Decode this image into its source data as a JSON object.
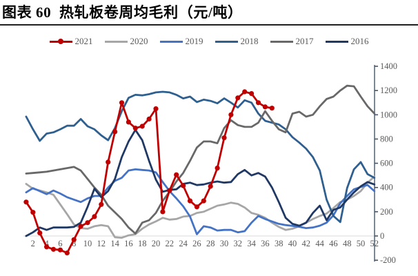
{
  "page": {
    "title": "图表 60  热轧板卷周均毛利（元/吨）",
    "title_color": "#000000",
    "rule_color": "#1f1f1f",
    "background": "#ffffff"
  },
  "legend": {
    "position": "top-center",
    "items": [
      {
        "label": "2021",
        "color": "#c00000",
        "marker": true
      },
      {
        "label": "2020",
        "color": "#a6a6a6",
        "marker": false
      },
      {
        "label": "2019",
        "color": "#4472c4",
        "marker": false
      },
      {
        "label": "2018",
        "color": "#2e5f8f",
        "marker": false
      },
      {
        "label": "2017",
        "color": "#686868",
        "marker": false
      },
      {
        "label": "2016",
        "color": "#1f3864",
        "marker": false
      }
    ]
  },
  "chart_data": {
    "type": "line",
    "title": "热轧板卷周均毛利（元/吨）",
    "x_range": [
      1,
      52
    ],
    "x_tick_labels": [
      2,
      4,
      6,
      8,
      10,
      12,
      14,
      16,
      18,
      20,
      22,
      24,
      26,
      28,
      30,
      32,
      34,
      36,
      38,
      40,
      42,
      44,
      46,
      48,
      50,
      52
    ],
    "ylim": [
      -200,
      1400
    ],
    "y_ticks": [
      -200,
      0,
      200,
      400,
      600,
      800,
      1000,
      1200,
      1400
    ],
    "grid": "zero-line-only",
    "legend_position": "top",
    "axis_side": "right",
    "axis_color": "#44546a",
    "zero_line_color": "#d9d9d9",
    "tick_label_color": "#595959",
    "series": [
      {
        "name": "2020",
        "color": "#a6a6a6",
        "marker": false,
        "start_week": 1,
        "values": [
          430,
          390,
          375,
          360,
          340,
          260,
          180,
          95,
          65,
          60,
          80,
          90,
          80,
          -10,
          -15,
          5,
          15,
          60,
          95,
          120,
          150,
          135,
          140,
          160,
          165,
          190,
          200,
          225,
          250,
          260,
          275,
          265,
          235,
          190,
          175,
          150,
          110,
          75,
          50,
          60,
          80,
          110,
          140,
          165,
          185,
          230,
          280,
          300,
          330,
          370,
          440,
          490
        ]
      },
      {
        "name": "2019",
        "color": "#4472c4",
        "marker": false,
        "start_week": 1,
        "values": [
          360,
          395,
          370,
          345,
          375,
          350,
          320,
          300,
          280,
          310,
          330,
          330,
          400,
          455,
          480,
          540,
          550,
          545,
          540,
          525,
          445,
          370,
          310,
          245,
          160,
          15,
          80,
          70,
          45,
          50,
          50,
          30,
          40,
          110,
          165,
          140,
          120,
          100,
          90,
          83,
          75,
          65,
          70,
          85,
          110,
          170,
          270,
          330,
          385,
          405,
          420,
          370
        ]
      },
      {
        "name": "2018",
        "color": "#2e5f8f",
        "marker": false,
        "start_week": 1,
        "values": [
          985,
          880,
          785,
          845,
          855,
          880,
          910,
          910,
          965,
          905,
          880,
          830,
          790,
          890,
          1030,
          1140,
          1165,
          1160,
          1170,
          1185,
          1190,
          1185,
          1165,
          1135,
          1150,
          1105,
          1125,
          1115,
          1095,
          1135,
          1100,
          1060,
          1120,
          1100,
          1010,
          950,
          935,
          920,
          880,
          815,
          770,
          720,
          650,
          540,
          300,
          165,
          115,
          395,
          550,
          610,
          510,
          480
        ]
      },
      {
        "name": "2017",
        "color": "#686868",
        "marker": false,
        "start_week": 1,
        "values": [
          515,
          520,
          525,
          530,
          540,
          550,
          560,
          570,
          540,
          470,
          400,
          340,
          250,
          195,
          140,
          70,
          20,
          110,
          130,
          190,
          290,
          365,
          450,
          520,
          620,
          730,
          780,
          780,
          765,
          890,
          955,
          915,
          900,
          900,
          935,
          1030,
          950,
          880,
          855,
          1010,
          1025,
          985,
          1000,
          1070,
          1130,
          1150,
          1200,
          1240,
          1235,
          1150,
          1070,
          1010
        ]
      },
      {
        "name": "2016",
        "color": "#1f3864",
        "marker": false,
        "start_week": 1,
        "values": [
          0,
          30,
          70,
          50,
          70,
          70,
          70,
          75,
          110,
          240,
          390,
          320,
          370,
          470,
          650,
          780,
          875,
          790,
          620,
          465,
          365,
          380,
          385,
          430,
          440,
          420,
          425,
          440,
          450,
          440,
          445,
          510,
          545,
          500,
          520,
          490,
          400,
          280,
          150,
          100,
          85,
          110,
          190,
          250,
          130,
          215,
          235,
          300,
          360,
          410,
          445,
          425
        ]
      },
      {
        "name": "2021",
        "color": "#c00000",
        "marker": true,
        "start_week": 1,
        "values": [
          280,
          195,
          25,
          -90,
          -110,
          -115,
          -140,
          -30,
          80,
          110,
          160,
          260,
          610,
          860,
          1100,
          940,
          890,
          905,
          965,
          1050,
          200,
          375,
          505,
          415,
          290,
          240,
          290,
          410,
          560,
          810,
          1000,
          1140,
          1190,
          1175,
          1100,
          1065,
          1055
        ]
      }
    ]
  }
}
